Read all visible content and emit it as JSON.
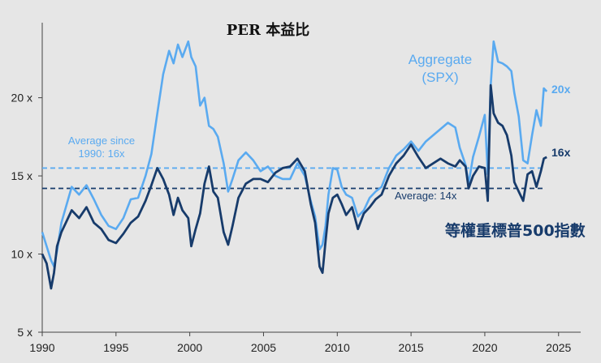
{
  "chart_data": {
    "type": "line",
    "title": "PER 本益比",
    "xlabel": "",
    "ylabel": "",
    "xlim": [
      1990,
      2026.5
    ],
    "ylim": [
      5,
      24.8
    ],
    "x_ticks": [
      1990,
      1995,
      2000,
      2005,
      2010,
      2015,
      2020,
      2025
    ],
    "x_tick_labels": [
      "1990",
      "1995",
      "2000",
      "2005",
      "2010",
      "2015",
      "2020",
      "2025"
    ],
    "y_ticks": [
      5,
      10,
      15,
      20
    ],
    "y_tick_labels": [
      "5 x",
      "10 x",
      "15 x",
      "20 x"
    ],
    "series": [
      {
        "name": "Aggregate (SPX)",
        "label_line1": "Aggregate",
        "label_line2": "(SPX)",
        "end_label": "20x",
        "color": "#5aaaf0",
        "x": [
          1990,
          1990.3,
          1990.6,
          1990.8,
          1991,
          1991.3,
          1991.6,
          1992,
          1992.5,
          1993,
          1993.5,
          1994,
          1994.5,
          1995,
          1995.5,
          1996,
          1996.5,
          1997,
          1997.4,
          1997.8,
          1998.2,
          1998.6,
          1998.9,
          1999.2,
          1999.5,
          1999.9,
          2000.1,
          2000.4,
          2000.7,
          2001,
          2001.3,
          2001.6,
          2001.9,
          2002.3,
          2002.6,
          2002.9,
          2003.3,
          2003.8,
          2004.3,
          2004.8,
          2005.3,
          2005.8,
          2006.3,
          2006.8,
          2007.3,
          2007.8,
          2008.2,
          2008.5,
          2008.8,
          2009.0,
          2009.2,
          2009.4,
          2009.7,
          2010,
          2010.3,
          2010.6,
          2011,
          2011.4,
          2011.8,
          2012.2,
          2012.6,
          2013,
          2013.5,
          2014,
          2014.5,
          2015,
          2015.5,
          2016,
          2016.5,
          2017,
          2017.5,
          2018,
          2018.3,
          2018.7,
          2018.9,
          2019.2,
          2019.6,
          2020.0,
          2020.2,
          2020.4,
          2020.6,
          2020.9,
          2021.2,
          2021.5,
          2021.8,
          2022.0,
          2022.3,
          2022.6,
          2022.9,
          2023.2,
          2023.5,
          2023.8,
          2024.0,
          2024.2
        ],
        "values": [
          11.4,
          10.5,
          9.6,
          9.2,
          10.2,
          12.0,
          13.0,
          14.3,
          13.8,
          14.4,
          13.5,
          12.5,
          11.8,
          11.6,
          12.3,
          13.5,
          13.6,
          15.0,
          16.4,
          19.0,
          21.5,
          23.0,
          22.2,
          23.4,
          22.6,
          23.6,
          22.6,
          22.0,
          19.5,
          20.0,
          18.2,
          18.0,
          17.5,
          15.8,
          14.0,
          14.8,
          16.0,
          16.5,
          16.0,
          15.3,
          15.6,
          15.0,
          14.8,
          14.8,
          15.8,
          15.0,
          13.4,
          12.4,
          10.3,
          10.6,
          11.8,
          13.8,
          15.5,
          15.4,
          14.3,
          13.8,
          13.6,
          12.4,
          12.8,
          13.6,
          14.0,
          14.3,
          15.5,
          16.3,
          16.7,
          17.2,
          16.6,
          17.2,
          17.6,
          18.0,
          18.4,
          18.1,
          16.8,
          15.7,
          14.5,
          16.2,
          17.5,
          18.9,
          15.1,
          20.8,
          23.6,
          22.3,
          22.2,
          22.0,
          21.7,
          20.3,
          18.8,
          16.0,
          15.8,
          17.6,
          19.2,
          18.2,
          20.6,
          20.4
        ]
      },
      {
        "name": "等權重標普500指數",
        "end_label": "16x",
        "color": "#173b6b",
        "x": [
          1990,
          1990.3,
          1990.6,
          1990.8,
          1991,
          1991.3,
          1991.6,
          1992,
          1992.5,
          1993,
          1993.5,
          1994,
          1994.5,
          1995,
          1995.5,
          1996,
          1996.5,
          1997,
          1997.4,
          1997.8,
          1998.2,
          1998.6,
          1998.9,
          1999.2,
          1999.5,
          1999.9,
          2000.1,
          2000.4,
          2000.7,
          2001,
          2001.3,
          2001.6,
          2001.9,
          2002.3,
          2002.6,
          2002.9,
          2003.3,
          2003.8,
          2004.3,
          2004.8,
          2005.3,
          2005.8,
          2006.3,
          2006.8,
          2007.3,
          2007.8,
          2008.2,
          2008.5,
          2008.8,
          2009.0,
          2009.2,
          2009.4,
          2009.7,
          2010,
          2010.3,
          2010.6,
          2011,
          2011.4,
          2011.8,
          2012.2,
          2012.6,
          2013,
          2013.5,
          2014,
          2014.5,
          2015,
          2015.5,
          2016,
          2016.5,
          2017,
          2017.5,
          2018,
          2018.3,
          2018.7,
          2018.9,
          2019.2,
          2019.6,
          2020.0,
          2020.2,
          2020.4,
          2020.6,
          2020.9,
          2021.2,
          2021.5,
          2021.8,
          2022.0,
          2022.3,
          2022.6,
          2022.9,
          2023.2,
          2023.5,
          2023.8,
          2024.0,
          2024.2
        ],
        "values": [
          10.0,
          9.4,
          7.8,
          8.8,
          10.5,
          11.4,
          12.0,
          12.8,
          12.3,
          13.0,
          12.0,
          11.6,
          10.9,
          10.7,
          11.3,
          12.0,
          12.4,
          13.4,
          14.4,
          15.5,
          14.8,
          13.8,
          12.5,
          13.6,
          12.8,
          12.3,
          10.5,
          11.6,
          12.6,
          14.5,
          15.6,
          14.0,
          13.6,
          11.4,
          10.6,
          11.8,
          13.6,
          14.5,
          14.8,
          14.8,
          14.6,
          15.2,
          15.5,
          15.6,
          16.1,
          15.3,
          13.2,
          12.0,
          9.2,
          8.8,
          10.8,
          12.6,
          13.6,
          13.8,
          13.2,
          12.5,
          13.0,
          11.6,
          12.6,
          13.0,
          13.5,
          13.8,
          15.0,
          15.8,
          16.3,
          17.0,
          16.2,
          15.5,
          15.8,
          16.1,
          15.8,
          15.6,
          16.0,
          15.6,
          14.2,
          15.0,
          15.6,
          15.5,
          13.4,
          20.8,
          19.0,
          18.4,
          18.2,
          17.6,
          16.3,
          14.6,
          14.0,
          13.4,
          15.1,
          15.3,
          14.3,
          15.3,
          16.1,
          16.2
        ]
      }
    ],
    "reference_lines": [
      {
        "value": 15.5,
        "label_line1": "Average since",
        "label_line2": "1990: 16x",
        "color": "#5aaaf0"
      },
      {
        "value": 14.2,
        "label": "Average: 14x",
        "color": "#173b6b"
      }
    ]
  }
}
